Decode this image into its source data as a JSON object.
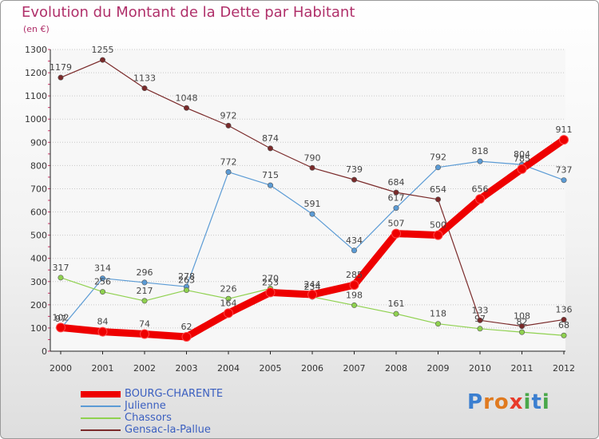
{
  "title": "Evolution du Montant de la Dette par Habitant",
  "subtitle": "(en €)",
  "logo_text": "Proxiti",
  "colors": {
    "title": "#b0306a",
    "legend_text": "#3b5fc0"
  },
  "chart_data": {
    "type": "line",
    "title": "Evolution du Montant de la Dette par Habitant",
    "ylabel": "(en €)",
    "x": [
      2000,
      2001,
      2002,
      2003,
      2004,
      2005,
      2006,
      2007,
      2008,
      2009,
      2010,
      2011,
      2012
    ],
    "ylim": [
      0,
      1300
    ],
    "yticks": [
      0,
      100,
      200,
      300,
      400,
      500,
      600,
      700,
      800,
      900,
      1000,
      1100,
      1200,
      1300
    ],
    "grid": "horizontal-dotted",
    "legend_position": "bottom-left",
    "series": [
      {
        "name": "BOURG-CHARENTE",
        "color": "#ee0000",
        "values": [
          102,
          84,
          74,
          62,
          164,
          253,
          244,
          285,
          507,
          500,
          656,
          785,
          911
        ]
      },
      {
        "name": "Julienne",
        "color": "#5b9bd5",
        "values": [
          97,
          314,
          296,
          278,
          772,
          715,
          591,
          434,
          617,
          792,
          818,
          804,
          737
        ]
      },
      {
        "name": "Chassors",
        "color": "#8fd14f",
        "values": [
          317,
          256,
          217,
          263,
          226,
          270,
          234,
          198,
          161,
          118,
          97,
          82,
          68
        ]
      },
      {
        "name": "Gensac-la-Pallue",
        "color": "#7a2a2a",
        "values": [
          1179,
          1255,
          1133,
          1048,
          972,
          874,
          790,
          739,
          684,
          654,
          133,
          108,
          136
        ]
      }
    ]
  }
}
